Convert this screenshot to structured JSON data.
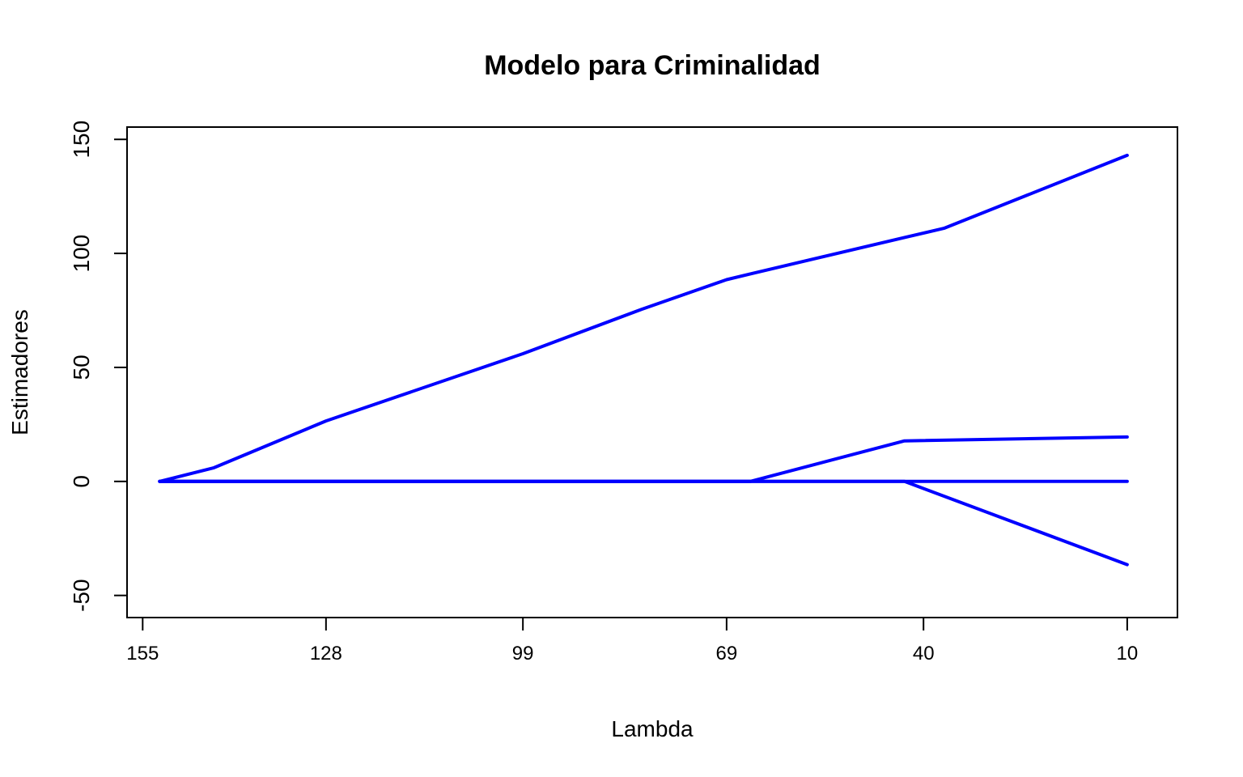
{
  "chart_data": {
    "type": "line",
    "title": "Modelo para Criminalidad",
    "xlabel": "Lambda",
    "ylabel": "Estimadores",
    "x_ticks": [
      "155",
      "128",
      "99",
      "69",
      "40",
      "10"
    ],
    "y_ticks": [
      "-50",
      "0",
      "50",
      "100",
      "150"
    ],
    "y_tick_values": [
      -50,
      0,
      50,
      100,
      150
    ],
    "xlim": [
      157.3,
      2.6
    ],
    "ylim": [
      -59.7,
      155.4
    ],
    "x_tick_values": [
      155,
      128,
      99,
      69,
      40,
      10
    ],
    "grid": false,
    "legend": "none",
    "line_color": "#0000ff",
    "series": [
      {
        "x": [
          152.5,
          144.5,
          128.0,
          99.0,
          81.5,
          69.0,
          65.5,
          42.8,
          37.0,
          10.0
        ],
        "values": [
          0,
          6,
          26.5,
          56,
          75.5,
          88.5,
          91,
          107,
          111,
          143
        ]
      },
      {
        "x": [
          152.5,
          65.5,
          42.8,
          10.0
        ],
        "values": [
          0,
          0,
          17.8,
          19.5
        ]
      },
      {
        "x": [
          152.5,
          10.0
        ],
        "values": [
          0,
          0
        ]
      },
      {
        "x": [
          152.5,
          42.8,
          10.0
        ],
        "values": [
          0,
          0,
          -36.5
        ]
      }
    ]
  }
}
